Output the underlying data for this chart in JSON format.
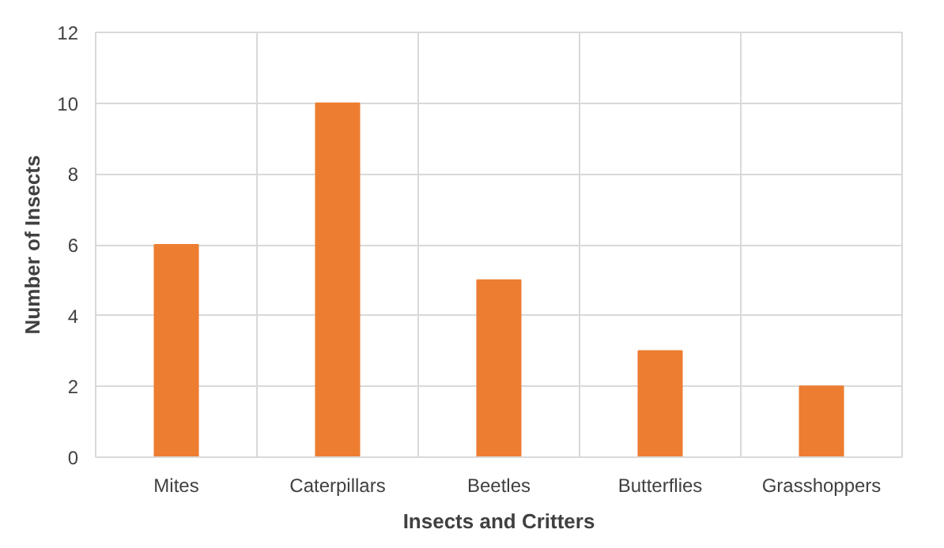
{
  "chart_data": {
    "type": "bar",
    "xlabel": "Insects and Critters",
    "ylabel": "Number of Insects",
    "categories": [
      "Mites",
      "Caterpillars",
      "Beetles",
      "Butterflies",
      "Grasshoppers"
    ],
    "values": [
      6,
      10,
      5,
      3,
      2
    ],
    "color": "#ed7d31",
    "ylim": [
      0,
      12
    ],
    "yticks": [
      0,
      2,
      4,
      6,
      8,
      10,
      12
    ],
    "grid": true
  }
}
